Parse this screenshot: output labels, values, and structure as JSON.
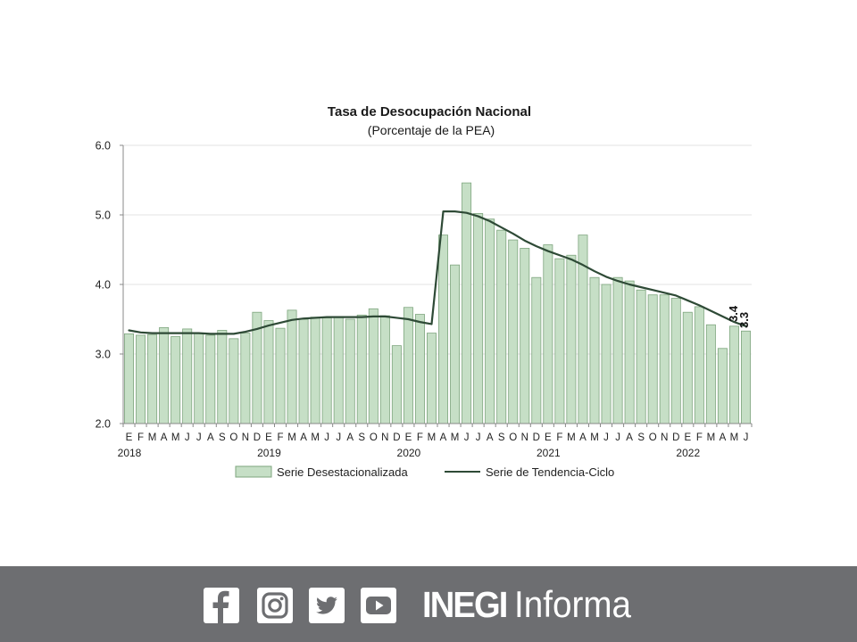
{
  "chart_data": {
    "type": "bar",
    "title": "Tasa de Desocupación Nacional",
    "subtitle": "(Porcentaje de la PEA)",
    "ylim": [
      2.0,
      6.0
    ],
    "yticks": [
      "2.0",
      "3.0",
      "4.0",
      "5.0",
      "6.0"
    ],
    "grid": true,
    "legend_position": "bottom",
    "month_labels": [
      "E",
      "F",
      "M",
      "A",
      "M",
      "J",
      "J",
      "A",
      "S",
      "O",
      "N",
      "D",
      "E",
      "F",
      "M",
      "A",
      "M",
      "J",
      "J",
      "A",
      "S",
      "O",
      "N",
      "D",
      "E",
      "F",
      "M",
      "A",
      "M",
      "J",
      "J",
      "A",
      "S",
      "O",
      "N",
      "D",
      "E",
      "F",
      "M",
      "A",
      "M",
      "J",
      "J",
      "A",
      "S",
      "O",
      "N",
      "D",
      "E",
      "F",
      "M",
      "A",
      "M",
      "J"
    ],
    "year_labels": [
      {
        "label": "2018",
        "index": 0
      },
      {
        "label": "2019",
        "index": 12
      },
      {
        "label": "2020",
        "index": 24
      },
      {
        "label": "2021",
        "index": 36
      },
      {
        "label": "2022",
        "index": 48
      }
    ],
    "series": [
      {
        "name": "Serie Desestacionalizada",
        "kind": "bar",
        "color": "#c6dfc6",
        "border": "#7ea57e",
        "values": [
          3.29,
          3.27,
          3.28,
          3.38,
          3.25,
          3.36,
          3.3,
          3.27,
          3.34,
          3.22,
          3.3,
          3.6,
          3.48,
          3.37,
          3.63,
          3.5,
          3.53,
          3.52,
          3.53,
          3.5,
          3.56,
          3.65,
          3.55,
          3.12,
          3.67,
          3.57,
          3.3,
          4.71,
          4.28,
          5.46,
          5.02,
          4.94,
          4.78,
          4.64,
          4.52,
          4.1,
          4.57,
          4.37,
          4.42,
          4.71,
          4.1,
          4.0,
          4.1,
          4.05,
          3.92,
          3.85,
          3.85,
          3.8,
          3.6,
          3.68,
          3.42,
          3.08,
          3.4,
          3.33
        ]
      },
      {
        "name": "Serie de Tendencia-Ciclo",
        "kind": "line",
        "color": "#2e4a36",
        "values": [
          3.34,
          3.31,
          3.3,
          3.3,
          3.3,
          3.3,
          3.3,
          3.29,
          3.29,
          3.29,
          3.32,
          3.36,
          3.41,
          3.45,
          3.49,
          3.51,
          3.52,
          3.53,
          3.53,
          3.53,
          3.53,
          3.54,
          3.54,
          3.52,
          3.5,
          3.46,
          3.43,
          5.05,
          5.05,
          5.03,
          4.98,
          4.91,
          4.82,
          4.73,
          4.63,
          4.55,
          4.48,
          4.42,
          4.36,
          4.28,
          4.19,
          4.11,
          4.05,
          4.0,
          3.96,
          3.92,
          3.88,
          3.84,
          3.77,
          3.7,
          3.62,
          3.54,
          3.46,
          3.4
        ]
      }
    ],
    "data_labels": [
      "3.4",
      "3.3"
    ]
  },
  "footer": {
    "brand_bold": "INEGI",
    "brand_light": "Informa",
    "icons": [
      "facebook-icon",
      "instagram-icon",
      "twitter-icon",
      "youtube-icon"
    ]
  }
}
